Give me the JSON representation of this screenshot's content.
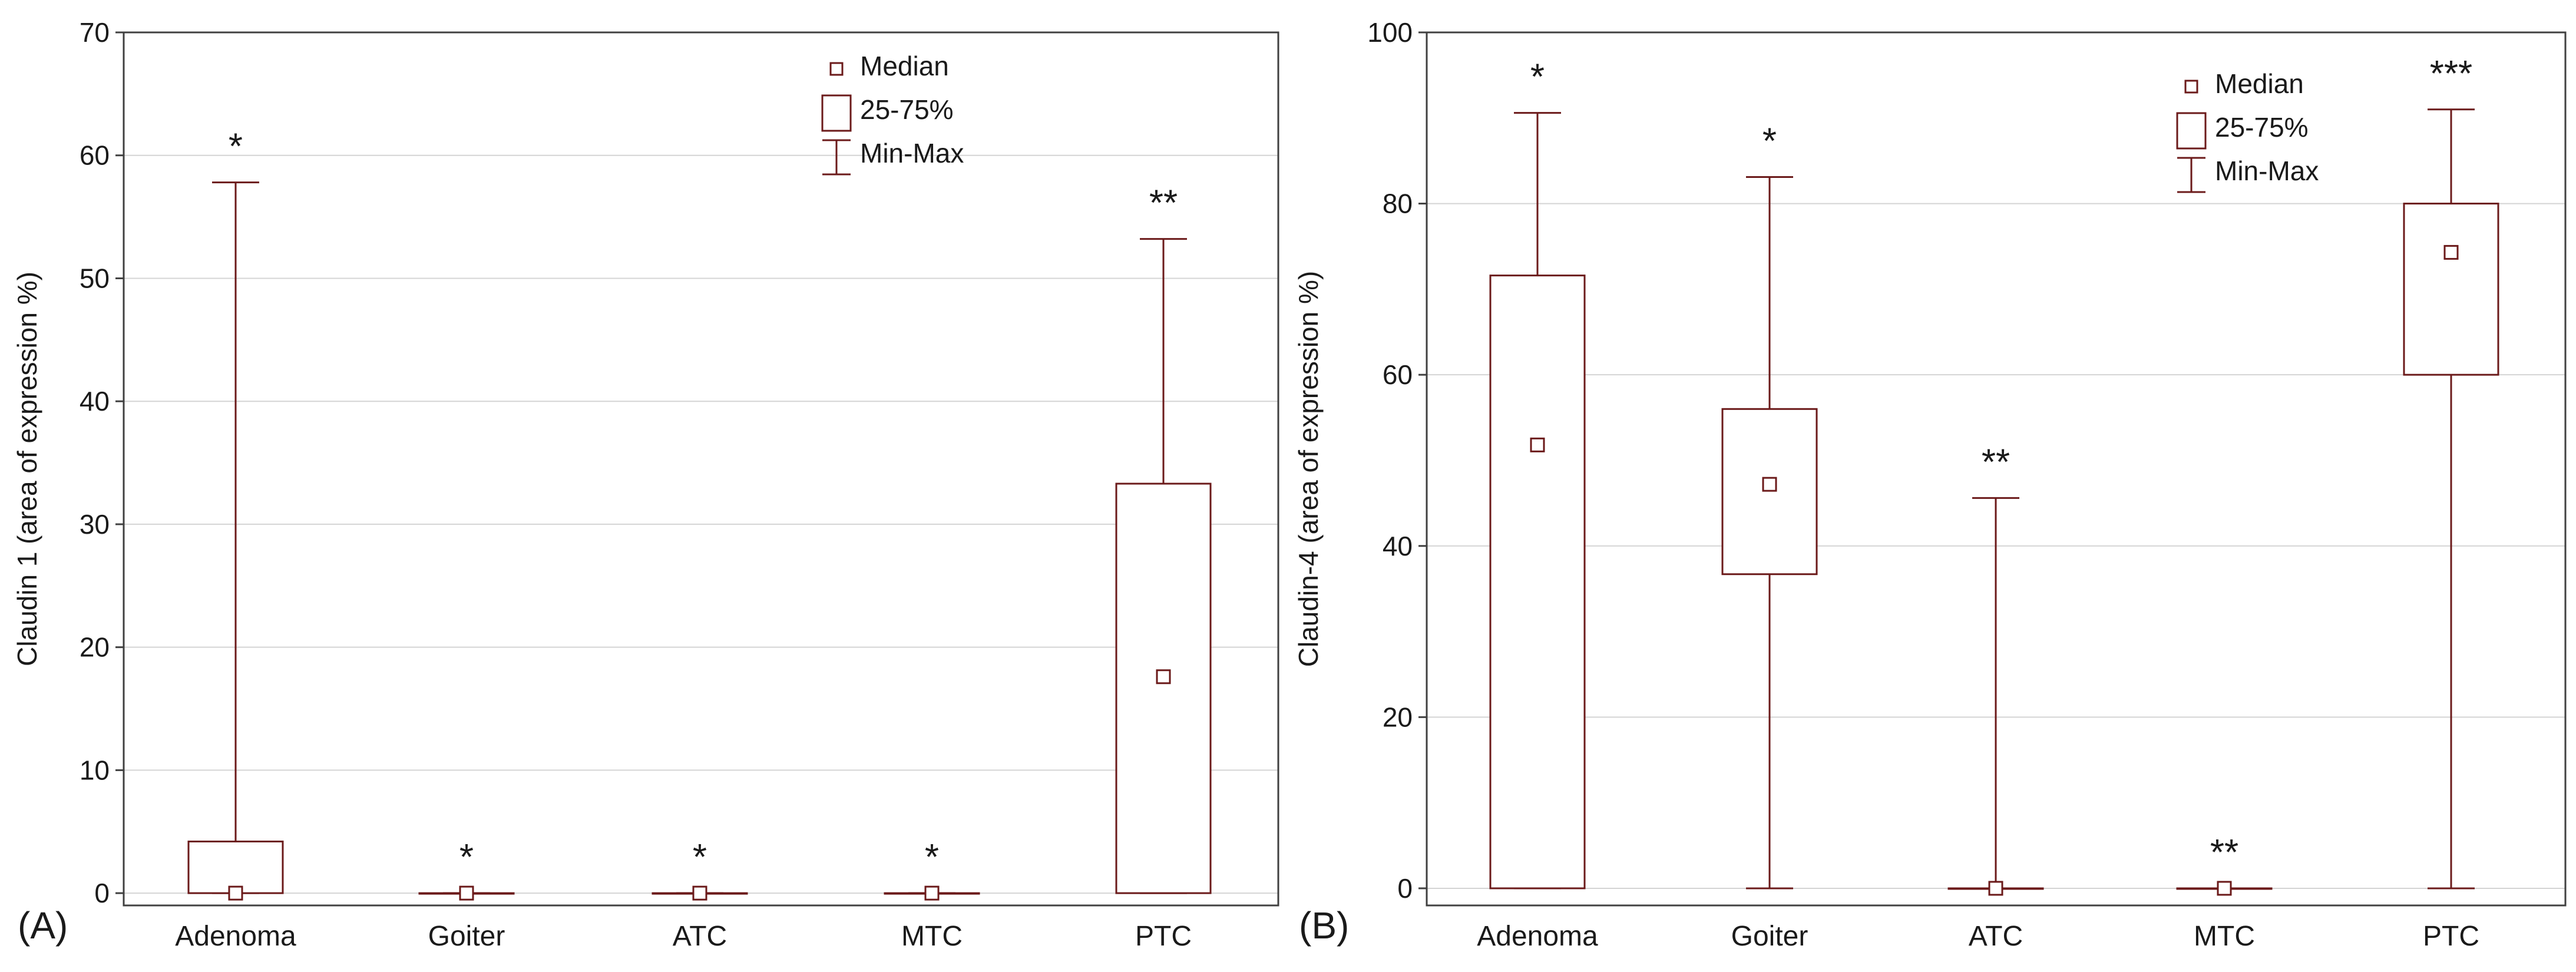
{
  "colors": {
    "box": "#6b1a1a",
    "grid": "#d4d4d4",
    "frame": "#404040",
    "text": "#1a1a1a"
  },
  "chart_data": [
    {
      "type": "boxplot",
      "panel_label": "(A)",
      "ylabel": "Claudin 1 (area of expression %)",
      "ylim": [
        -1,
        70
      ],
      "yticks": [
        0,
        10,
        20,
        30,
        40,
        50,
        60,
        70
      ],
      "grid": true,
      "categories": [
        "Adenoma",
        "Goiter",
        "ATC",
        "MTC",
        "PTC"
      ],
      "series": [
        {
          "name": "Adenoma",
          "min": 0,
          "q1": 0,
          "median": 0,
          "q3": 4.2,
          "max": 57.8,
          "significance": "*"
        },
        {
          "name": "Goiter",
          "min": 0,
          "q1": 0,
          "median": 0,
          "q3": 0,
          "max": 0,
          "significance": "*"
        },
        {
          "name": "ATC",
          "min": 0,
          "q1": 0,
          "median": 0,
          "q3": 0,
          "max": 0,
          "significance": "*"
        },
        {
          "name": "MTC",
          "min": 0,
          "q1": 0,
          "median": 0,
          "q3": 0,
          "max": 0,
          "significance": "*"
        },
        {
          "name": "PTC",
          "min": 0,
          "q1": 0,
          "median": 17.6,
          "q3": 33.3,
          "max": 53.2,
          "significance": "**"
        }
      ],
      "legend": {
        "position": "top-right",
        "entries": [
          "Median",
          "25-75%",
          "Min-Max"
        ]
      }
    },
    {
      "type": "boxplot",
      "panel_label": "(B)",
      "ylabel": "Claudin-4 (area of expression %)",
      "ylim": [
        -2,
        100
      ],
      "yticks": [
        0,
        20,
        40,
        60,
        80,
        100
      ],
      "grid": true,
      "categories": [
        "Adenoma",
        "Goiter",
        "ATC",
        "MTC",
        "PTC"
      ],
      "series": [
        {
          "name": "Adenoma",
          "min": 0,
          "q1": 0,
          "median": 51.8,
          "q3": 71.6,
          "max": 90.6,
          "significance": "*"
        },
        {
          "name": "Goiter",
          "min": 0,
          "q1": 36.7,
          "median": 47.2,
          "q3": 56.0,
          "max": 83.1,
          "significance": "*"
        },
        {
          "name": "ATC",
          "min": 0,
          "q1": 0,
          "median": 0,
          "q3": 0,
          "max": 45.6,
          "significance": "**"
        },
        {
          "name": "MTC",
          "min": 0,
          "q1": 0,
          "median": 0,
          "q3": 0,
          "max": 0,
          "significance": "**"
        },
        {
          "name": "PTC",
          "min": 0,
          "q1": 60.0,
          "median": 74.3,
          "q3": 80.0,
          "max": 91.0,
          "significance": "***"
        }
      ],
      "legend": {
        "position": "top-right",
        "entries": [
          "Median",
          "25-75%",
          "Min-Max"
        ]
      }
    }
  ]
}
